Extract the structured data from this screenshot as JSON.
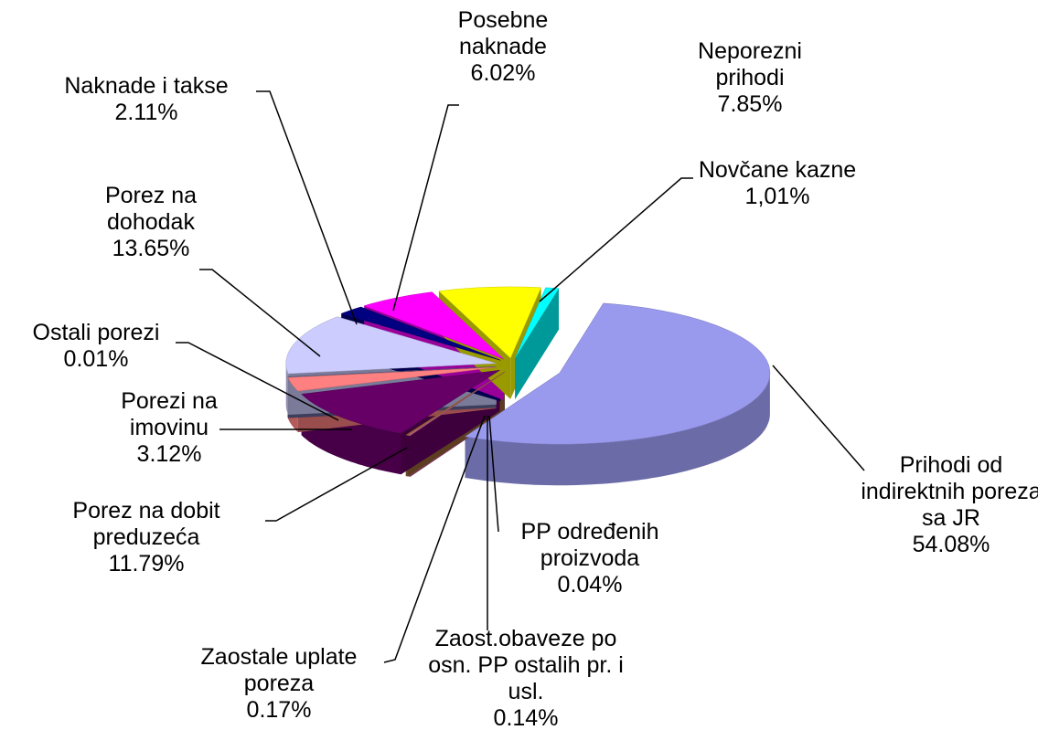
{
  "chart_data": {
    "type": "pie",
    "categories": [
      "Prihodi od indirektnih poreza sa JR",
      "PP određenih proizvoda",
      "Zaost.obaveze po osn. PP ostalih pr. i usl.",
      "Zaostale uplate poreza",
      "Porez na dobit preduzeća",
      "Porezi na imovinu",
      "Ostali porezi",
      "Porez na dohodak",
      "Naknade i takse",
      "Posebne naknade",
      "Neporezni prihodi",
      "Novčane kazne"
    ],
    "values": [
      54.08,
      0.04,
      0.14,
      0.17,
      11.79,
      3.12,
      0.01,
      13.65,
      2.11,
      6.02,
      7.85,
      1.01
    ],
    "value_labels": [
      "54.08%",
      "0.04%",
      "0.14%",
      "0.17%",
      "11.79%",
      "3.12%",
      "0.01%",
      "13.65%",
      "2.11%",
      "6.02%",
      "7.85%",
      "1,01%"
    ],
    "colors": [
      "#9999ee",
      "#993366",
      "#cc6699",
      "#996633",
      "#660066",
      "#ff8080",
      "#666699",
      "#ccccff",
      "#000080",
      "#ff00ff",
      "#ffff00",
      "#00ffff"
    ]
  }
}
